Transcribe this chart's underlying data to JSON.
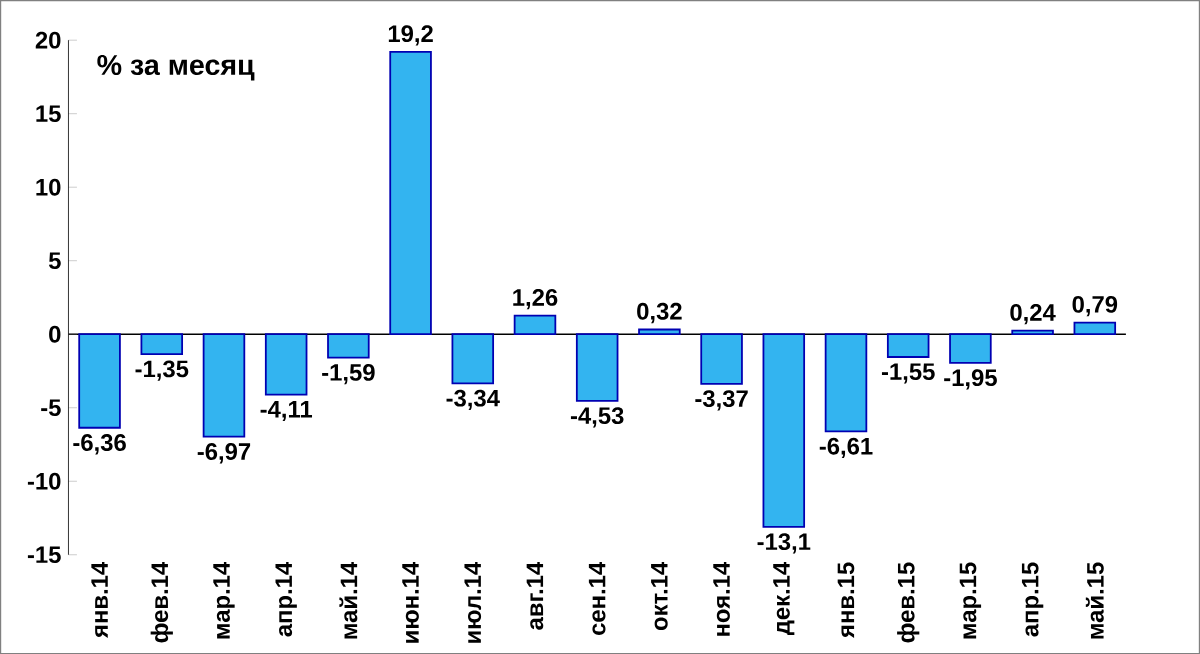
{
  "chart_data": {
    "type": "bar",
    "title": "% за месяц",
    "categories": [
      "янв.14",
      "фев.14",
      "мар.14",
      "апр.14",
      "май.14",
      "июн.14",
      "июл.14",
      "авг.14",
      "сен.14",
      "окт.14",
      "ноя.14",
      "дек.14",
      "янв.15",
      "фев.15",
      "мар.15",
      "апр.15",
      "май.15"
    ],
    "values": [
      -6.36,
      -1.35,
      -6.97,
      -4.11,
      -1.59,
      19.2,
      -3.34,
      1.26,
      -4.53,
      0.32,
      -3.37,
      -13.1,
      -6.61,
      -1.55,
      -1.95,
      0.24,
      0.79
    ],
    "value_labels": [
      "-6,36",
      "-1,35",
      "-6,97",
      "-4,11",
      "-1,59",
      "19,2",
      "-3,34",
      "1,26",
      "-4,53",
      "0,32",
      "-3,37",
      "-13,1",
      "-6,61",
      "-1,55",
      "-1,95",
      "0,24",
      "0,79"
    ],
    "color": "#33b4f0",
    "ylim": [
      -15,
      20
    ],
    "yticks": [
      -15,
      -10,
      -5,
      0,
      5,
      10,
      15,
      20
    ]
  }
}
